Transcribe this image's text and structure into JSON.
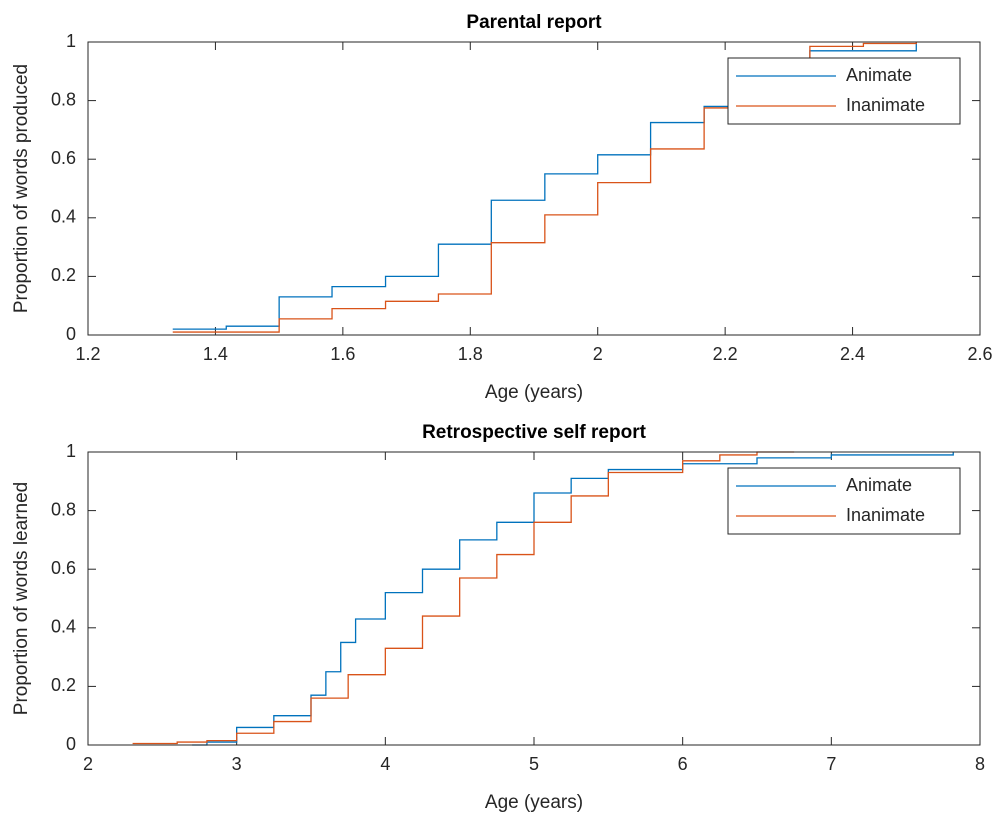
{
  "chart_data": [
    {
      "type": "line",
      "step": true,
      "title": "Parental report",
      "x_label": "Age (years)",
      "y_label": "Proportion of words produced",
      "xlim": [
        1.2,
        2.6
      ],
      "xticks": [
        1.2,
        1.4,
        1.6,
        1.8,
        2,
        2.2,
        2.4,
        2.6
      ],
      "ylim": [
        0,
        1
      ],
      "yticks": [
        0,
        0.2,
        0.4,
        0.6,
        0.8,
        1
      ],
      "legend": "upper right",
      "box": true,
      "series": [
        {
          "name": "Animate",
          "color": "#0072bd",
          "x": [
            1.333,
            1.417,
            1.5,
            1.583,
            1.667,
            1.75,
            1.833,
            1.917,
            2.0,
            2.083,
            2.167,
            2.333,
            2.5
          ],
          "values": [
            0.02,
            0.03,
            0.13,
            0.165,
            0.2,
            0.31,
            0.46,
            0.55,
            0.615,
            0.725,
            0.78,
            0.97,
            1
          ]
        },
        {
          "name": "Inanimate",
          "color": "#d95319",
          "x": [
            1.333,
            1.5,
            1.583,
            1.667,
            1.75,
            1.833,
            1.917,
            2.0,
            2.083,
            2.167,
            2.333,
            2.417,
            2.5
          ],
          "values": [
            0.01,
            0.055,
            0.09,
            0.115,
            0.14,
            0.315,
            0.41,
            0.52,
            0.635,
            0.775,
            0.985,
            0.995,
            1
          ]
        }
      ]
    },
    {
      "type": "line",
      "step": true,
      "title": "Retrospective self report",
      "x_label": "Age (years)",
      "y_label": "Proportion of words learned",
      "xlim": [
        2,
        8
      ],
      "xticks": [
        2,
        3,
        4,
        5,
        6,
        7,
        8
      ],
      "ylim": [
        0,
        1
      ],
      "yticks": [
        0,
        0.2,
        0.4,
        0.6,
        0.8,
        1
      ],
      "legend": "upper right",
      "box": true,
      "series": [
        {
          "name": "Animate",
          "color": "#0072bd",
          "x": [
            2.7,
            2.8,
            3.0,
            3.25,
            3.5,
            3.6,
            3.7,
            3.8,
            4.0,
            4.25,
            4.5,
            4.75,
            5.0,
            5.25,
            5.5,
            6.0,
            6.5,
            7.0,
            7.82
          ],
          "values": [
            0,
            0.01,
            0.06,
            0.1,
            0.17,
            0.25,
            0.35,
            0.43,
            0.52,
            0.6,
            0.7,
            0.76,
            0.86,
            0.91,
            0.94,
            0.96,
            0.98,
            0.99,
            1
          ]
        },
        {
          "name": "Inanimate",
          "color": "#d95319",
          "x": [
            2.3,
            2.6,
            2.8,
            3.0,
            3.25,
            3.5,
            3.75,
            4.0,
            4.25,
            4.5,
            4.75,
            5.0,
            5.25,
            5.5,
            6.0,
            6.25,
            6.5,
            6.75
          ],
          "values": [
            0.005,
            0.01,
            0.015,
            0.04,
            0.08,
            0.16,
            0.24,
            0.33,
            0.44,
            0.57,
            0.65,
            0.76,
            0.85,
            0.93,
            0.97,
            0.99,
            1,
            1
          ]
        }
      ]
    }
  ]
}
